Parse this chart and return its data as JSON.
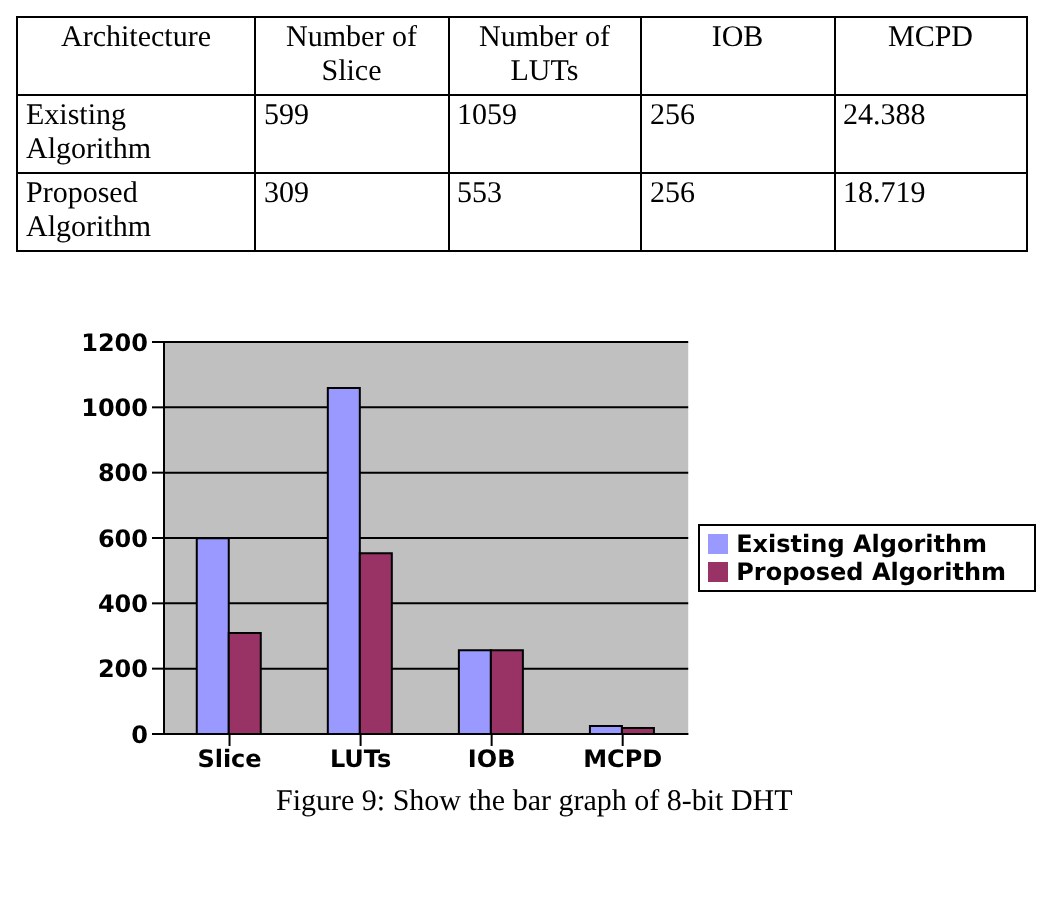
{
  "chart_data": {
    "type": "bar",
    "categories": [
      "Slice",
      "LUTs",
      "IOB",
      "MCPD"
    ],
    "series": [
      {
        "name": "Existing Algorithm",
        "color": "#9999ff",
        "values": [
          599,
          1059,
          256,
          24.388
        ]
      },
      {
        "name": "Proposed Algorithm",
        "color": "#993366",
        "values": [
          309,
          553,
          256,
          18.719
        ]
      }
    ],
    "ylim": [
      0,
      1200
    ],
    "yticks": [
      0,
      200,
      400,
      600,
      800,
      1000,
      1200
    ],
    "grid": "y",
    "legend": "right",
    "annotations": [
      "Architecture",
      "Number of Slice",
      "Number of LUTs",
      "IOB",
      "MCPD",
      "599",
      "1059",
      "256",
      "24.388",
      "309",
      "553",
      "256",
      "18.719",
      "Figure 9: Show the bar graph of 8-bit DHT"
    ]
  }
}
